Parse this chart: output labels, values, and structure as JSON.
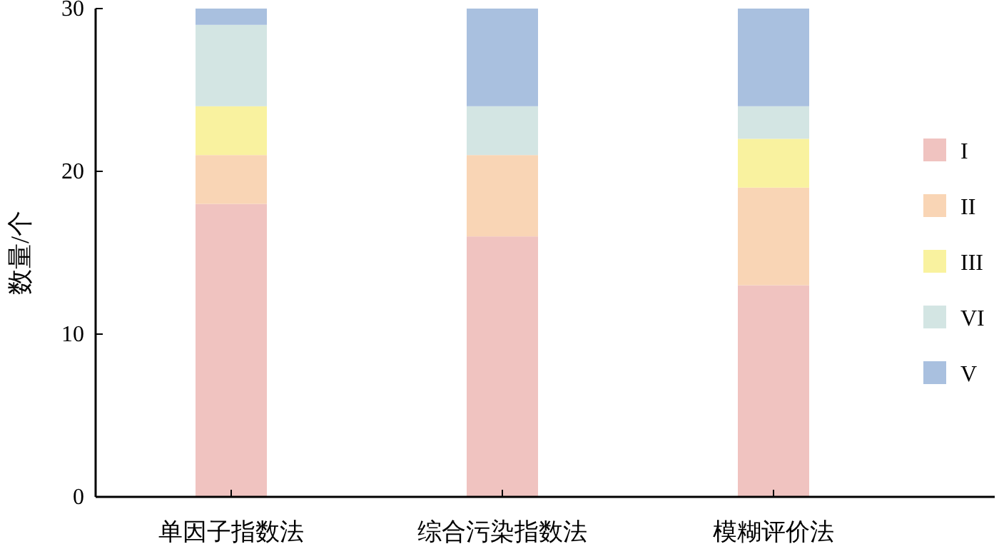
{
  "chart_data": {
    "type": "bar",
    "stacked": true,
    "ylabel": "数量/个",
    "categories": [
      "单因子指数法",
      "综合污染指数法",
      "模糊评价法"
    ],
    "ylim": [
      0,
      30
    ],
    "yticks": [
      0,
      10,
      20,
      30
    ],
    "legend": "right",
    "grid": false,
    "series": [
      {
        "name": "I",
        "color": "#f0c3c0",
        "values": [
          18,
          16,
          13
        ]
      },
      {
        "name": "II",
        "color": "#f9d5b5",
        "values": [
          3,
          5,
          6
        ]
      },
      {
        "name": "III",
        "color": "#f9f29f",
        "values": [
          3,
          0,
          3
        ]
      },
      {
        "name": "VI",
        "color": "#d3e5e3",
        "values": [
          5,
          3,
          2
        ]
      },
      {
        "name": "V",
        "color": "#a9c0df",
        "values": [
          1,
          6,
          6
        ]
      }
    ]
  }
}
